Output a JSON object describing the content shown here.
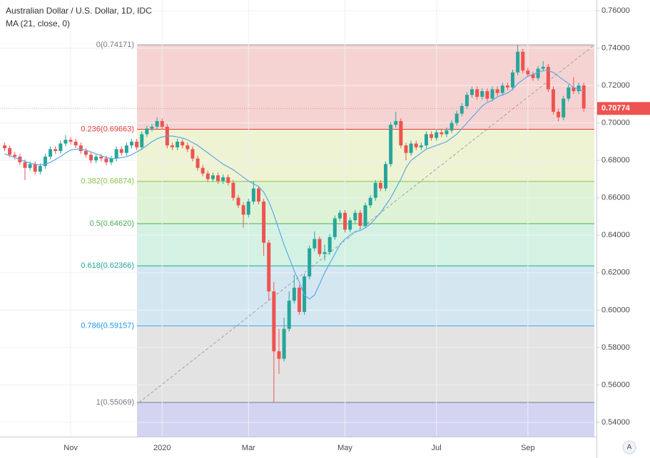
{
  "chart_data": {
    "type": "candlestick",
    "title": "Australian Dollar / U.S. Dollar, 1D, IDC",
    "subtitle": "MA (21, close, 0)",
    "up_color": "#26a69a",
    "down_color": "#ef5350",
    "ylim": [
      0.5324,
      0.7657
    ],
    "yticks": [
      {
        "value": 0.76,
        "label": "0.76000"
      },
      {
        "value": 0.74,
        "label": "0.74000"
      },
      {
        "value": 0.72,
        "label": "0.72000"
      },
      {
        "value": 0.7,
        "label": "0.70000"
      },
      {
        "value": 0.68,
        "label": "0.68000"
      },
      {
        "value": 0.66,
        "label": "0.66000"
      },
      {
        "value": 0.64,
        "label": "0.64000"
      },
      {
        "value": 0.62,
        "label": "0.62000"
      },
      {
        "value": 0.6,
        "label": "0.60000"
      },
      {
        "value": 0.58,
        "label": "0.58000"
      },
      {
        "value": 0.56,
        "label": "0.56000"
      },
      {
        "value": 0.54,
        "label": "0.54000"
      }
    ],
    "grid": true,
    "last_price": 0.70774,
    "auto_button": "A",
    "categories": [
      null,
      null,
      null,
      null,
      null,
      null,
      null,
      null,
      null,
      null,
      null,
      null,
      null,
      "Nov",
      null,
      null,
      null,
      null,
      null,
      null,
      null,
      null,
      null,
      null,
      null,
      null,
      null,
      null,
      null,
      null,
      null,
      "2020",
      null,
      null,
      null,
      null,
      null,
      null,
      null,
      null,
      null,
      null,
      null,
      null,
      null,
      null,
      null,
      null,
      "Mar",
      null,
      null,
      null,
      null,
      null,
      null,
      null,
      null,
      null,
      null,
      null,
      null,
      null,
      null,
      null,
      null,
      null,
      null,
      "May",
      null,
      null,
      null,
      null,
      null,
      null,
      null,
      null,
      null,
      null,
      null,
      null,
      null,
      null,
      null,
      null,
      null,
      "Jul",
      null,
      null,
      null,
      null,
      null,
      null,
      null,
      null,
      null,
      null,
      null,
      null,
      null,
      null,
      null,
      null,
      null,
      "Sep",
      null,
      null,
      null,
      null,
      null,
      null,
      null,
      null,
      null,
      null,
      null,
      null
    ],
    "ohlc": [
      [
        0.688,
        0.6895,
        0.685,
        0.6865
      ],
      [
        0.6865,
        0.688,
        0.6815,
        0.683
      ],
      [
        0.683,
        0.6845,
        0.6805,
        0.682
      ],
      [
        0.682,
        0.6835,
        0.6775,
        0.679
      ],
      [
        0.679,
        0.6805,
        0.6695,
        0.676
      ],
      [
        0.676,
        0.6795,
        0.6745,
        0.678
      ],
      [
        0.678,
        0.6795,
        0.6725,
        0.674
      ],
      [
        0.674,
        0.6785,
        0.6725,
        0.677
      ],
      [
        0.677,
        0.6835,
        0.6755,
        0.682
      ],
      [
        0.682,
        0.6875,
        0.6805,
        0.686
      ],
      [
        0.686,
        0.6875,
        0.6835,
        0.685
      ],
      [
        0.685,
        0.6905,
        0.6835,
        0.689
      ],
      [
        0.689,
        0.6935,
        0.6875,
        0.691
      ],
      [
        0.691,
        0.6925,
        0.6885,
        0.69
      ],
      [
        0.69,
        0.6915,
        0.6865,
        0.688
      ],
      [
        0.688,
        0.6895,
        0.6835,
        0.685
      ],
      [
        0.685,
        0.6865,
        0.6815,
        0.683
      ],
      [
        0.683,
        0.6845,
        0.6785,
        0.68
      ],
      [
        0.68,
        0.6835,
        0.6785,
        0.682
      ],
      [
        0.682,
        0.6835,
        0.6795,
        0.681
      ],
      [
        0.681,
        0.6825,
        0.6775,
        0.679
      ],
      [
        0.679,
        0.6825,
        0.6775,
        0.681
      ],
      [
        0.681,
        0.6875,
        0.6795,
        0.686
      ],
      [
        0.686,
        0.6875,
        0.6825,
        0.684
      ],
      [
        0.684,
        0.6895,
        0.6825,
        0.688
      ],
      [
        0.688,
        0.6915,
        0.6865,
        0.69
      ],
      [
        0.69,
        0.6915,
        0.6855,
        0.687
      ],
      [
        0.687,
        0.6955,
        0.6855,
        0.694
      ],
      [
        0.694,
        0.6985,
        0.6925,
        0.697
      ],
      [
        0.697,
        0.6995,
        0.6955,
        0.698
      ],
      [
        0.698,
        0.703,
        0.6965,
        0.701
      ],
      [
        0.701,
        0.7025,
        0.6965,
        0.698
      ],
      [
        0.698,
        0.6995,
        0.6865,
        0.688
      ],
      [
        0.688,
        0.6895,
        0.6855,
        0.687
      ],
      [
        0.687,
        0.6915,
        0.6855,
        0.69
      ],
      [
        0.69,
        0.6915,
        0.6865,
        0.688
      ],
      [
        0.688,
        0.6895,
        0.6845,
        0.686
      ],
      [
        0.686,
        0.6875,
        0.6795,
        0.681
      ],
      [
        0.681,
        0.6825,
        0.6745,
        0.676
      ],
      [
        0.676,
        0.6775,
        0.6715,
        0.673
      ],
      [
        0.673,
        0.6745,
        0.6685,
        0.67
      ],
      [
        0.67,
        0.6735,
        0.6685,
        0.672
      ],
      [
        0.672,
        0.6735,
        0.6675,
        0.669
      ],
      [
        0.669,
        0.6725,
        0.6675,
        0.671
      ],
      [
        0.671,
        0.6725,
        0.6665,
        0.668
      ],
      [
        0.668,
        0.6695,
        0.6585,
        0.66
      ],
      [
        0.66,
        0.6615,
        0.6545,
        0.656
      ],
      [
        0.656,
        0.6575,
        0.644,
        0.651
      ],
      [
        0.651,
        0.6595,
        0.6495,
        0.658
      ],
      [
        0.658,
        0.669,
        0.6565,
        0.665
      ],
      [
        0.665,
        0.6665,
        0.6565,
        0.658
      ],
      [
        0.658,
        0.6595,
        0.629,
        0.636
      ],
      [
        0.636,
        0.6375,
        0.605,
        0.61
      ],
      [
        0.61,
        0.615,
        0.5507,
        0.578
      ],
      [
        0.578,
        0.59,
        0.566,
        0.574
      ],
      [
        0.574,
        0.596,
        0.5725,
        0.59
      ],
      [
        0.59,
        0.61,
        0.5885,
        0.605
      ],
      [
        0.605,
        0.619,
        0.6035,
        0.612
      ],
      [
        0.612,
        0.6135,
        0.5975,
        0.599
      ],
      [
        0.599,
        0.6195,
        0.5975,
        0.618
      ],
      [
        0.618,
        0.6345,
        0.6165,
        0.633
      ],
      [
        0.633,
        0.642,
        0.6315,
        0.638
      ],
      [
        0.638,
        0.6395,
        0.6285,
        0.63
      ],
      [
        0.63,
        0.635,
        0.6265,
        0.631
      ],
      [
        0.631,
        0.6405,
        0.6295,
        0.639
      ],
      [
        0.639,
        0.6505,
        0.6375,
        0.649
      ],
      [
        0.649,
        0.6535,
        0.6475,
        0.652
      ],
      [
        0.652,
        0.6535,
        0.6415,
        0.643
      ],
      [
        0.643,
        0.6495,
        0.6415,
        0.648
      ],
      [
        0.648,
        0.6535,
        0.6465,
        0.652
      ],
      [
        0.652,
        0.6535,
        0.6435,
        0.645
      ],
      [
        0.645,
        0.6575,
        0.6435,
        0.656
      ],
      [
        0.656,
        0.6615,
        0.6545,
        0.66
      ],
      [
        0.66,
        0.6695,
        0.6585,
        0.668
      ],
      [
        0.668,
        0.6695,
        0.6635,
        0.665
      ],
      [
        0.665,
        0.6795,
        0.6635,
        0.678
      ],
      [
        0.678,
        0.7005,
        0.6765,
        0.699
      ],
      [
        0.699,
        0.706,
        0.6975,
        0.701
      ],
      [
        0.701,
        0.7025,
        0.6865,
        0.688
      ],
      [
        0.688,
        0.6895,
        0.68,
        0.684
      ],
      [
        0.684,
        0.6905,
        0.6825,
        0.689
      ],
      [
        0.689,
        0.6905,
        0.6855,
        0.687
      ],
      [
        0.687,
        0.6895,
        0.6855,
        0.688
      ],
      [
        0.688,
        0.6955,
        0.6865,
        0.694
      ],
      [
        0.694,
        0.6955,
        0.6905,
        0.692
      ],
      [
        0.692,
        0.6965,
        0.6905,
        0.695
      ],
      [
        0.695,
        0.6965,
        0.6925,
        0.694
      ],
      [
        0.694,
        0.6975,
        0.6925,
        0.696
      ],
      [
        0.696,
        0.7015,
        0.6945,
        0.7
      ],
      [
        0.7,
        0.7065,
        0.6985,
        0.705
      ],
      [
        0.705,
        0.7105,
        0.7035,
        0.709
      ],
      [
        0.709,
        0.7165,
        0.7075,
        0.715
      ],
      [
        0.715,
        0.7195,
        0.7135,
        0.718
      ],
      [
        0.718,
        0.7195,
        0.7125,
        0.714
      ],
      [
        0.714,
        0.7185,
        0.7125,
        0.717
      ],
      [
        0.717,
        0.7185,
        0.7115,
        0.713
      ],
      [
        0.713,
        0.7195,
        0.7115,
        0.718
      ],
      [
        0.718,
        0.7195,
        0.7145,
        0.716
      ],
      [
        0.716,
        0.7215,
        0.7145,
        0.72
      ],
      [
        0.72,
        0.7215,
        0.7175,
        0.719
      ],
      [
        0.719,
        0.7285,
        0.7175,
        0.727
      ],
      [
        0.727,
        0.7417,
        0.7255,
        0.738
      ],
      [
        0.738,
        0.7395,
        0.7265,
        0.728
      ],
      [
        0.728,
        0.7295,
        0.7245,
        0.726
      ],
      [
        0.726,
        0.7275,
        0.7225,
        0.724
      ],
      [
        0.724,
        0.7305,
        0.7225,
        0.729
      ],
      [
        0.729,
        0.733,
        0.7275,
        0.73
      ],
      [
        0.73,
        0.7315,
        0.7165,
        0.718
      ],
      [
        0.718,
        0.7195,
        0.7045,
        0.706
      ],
      [
        0.706,
        0.7075,
        0.701,
        0.703
      ],
      [
        0.703,
        0.7145,
        0.7015,
        0.713
      ],
      [
        0.713,
        0.7205,
        0.7115,
        0.719
      ],
      [
        0.719,
        0.7245,
        0.7155,
        0.717
      ],
      [
        0.717,
        0.7215,
        0.7155,
        0.72
      ],
      [
        0.72,
        0.7215,
        0.706,
        0.70774
      ]
    ],
    "ma": {
      "color": "#5aa9e6",
      "values": [
        0.6835,
        0.6825,
        0.6815,
        0.6805,
        0.6795,
        0.6785,
        0.678,
        0.6775,
        0.678,
        0.679,
        0.6805,
        0.682,
        0.684,
        0.6855,
        0.686,
        0.686,
        0.6855,
        0.6845,
        0.6835,
        0.6825,
        0.6815,
        0.681,
        0.681,
        0.6815,
        0.682,
        0.683,
        0.6845,
        0.686,
        0.688,
        0.69,
        0.6915,
        0.6925,
        0.693,
        0.693,
        0.6925,
        0.692,
        0.691,
        0.6895,
        0.688,
        0.686,
        0.684,
        0.682,
        0.68,
        0.678,
        0.6765,
        0.675,
        0.673,
        0.671,
        0.669,
        0.6675,
        0.666,
        0.663,
        0.658,
        0.651,
        0.643,
        0.635,
        0.628,
        0.621,
        0.615,
        0.608,
        0.606,
        0.608,
        0.614,
        0.62,
        0.625,
        0.63,
        0.635,
        0.638,
        0.64,
        0.642,
        0.6425,
        0.644,
        0.646,
        0.649,
        0.652,
        0.656,
        0.66,
        0.665,
        0.67,
        0.676,
        0.68,
        0.682,
        0.684,
        0.686,
        0.687,
        0.688,
        0.689,
        0.69,
        0.692,
        0.694,
        0.697,
        0.7,
        0.703,
        0.706,
        0.709,
        0.711,
        0.712,
        0.714,
        0.715,
        0.716,
        0.718,
        0.721,
        0.723,
        0.725,
        0.726,
        0.727,
        0.728,
        0.728,
        0.727,
        0.725,
        0.723,
        0.721,
        0.719,
        0.718,
        0.717
      ]
    },
    "fib_levels": [
      {
        "label": "0(0.74171)",
        "value": 0.74171,
        "color": "#9e9e9e",
        "label_color": "#787b86",
        "fill": "#f6d3d3"
      },
      {
        "label": "0.236(0.69663)",
        "value": 0.69663,
        "color": "#e53935",
        "label_color": "#e53935",
        "fill": "#eef3d4"
      },
      {
        "label": "0.382(0.66874)",
        "value": 0.66874,
        "color": "#8bc34a",
        "label_color": "#8bc34a",
        "fill": "#def3d6"
      },
      {
        "label": "0.5(0.64620)",
        "value": 0.6462,
        "color": "#4caf50",
        "label_color": "#4caf50",
        "fill": "#d4f2e4"
      },
      {
        "label": "0.618(0.62366)",
        "value": 0.62366,
        "color": "#26a69a",
        "label_color": "#26a69a",
        "fill": "#d4e7f1"
      },
      {
        "label": "0.786(0.59157)",
        "value": 0.59157,
        "color": "#42a5f5",
        "label_color": "#2196f3",
        "fill": "#e3e3e3"
      },
      {
        "label": "1(0.55069)",
        "value": 0.55069,
        "color": "#787b86",
        "label_color": "#787b86",
        "fill": "#d3d3f2"
      }
    ]
  }
}
